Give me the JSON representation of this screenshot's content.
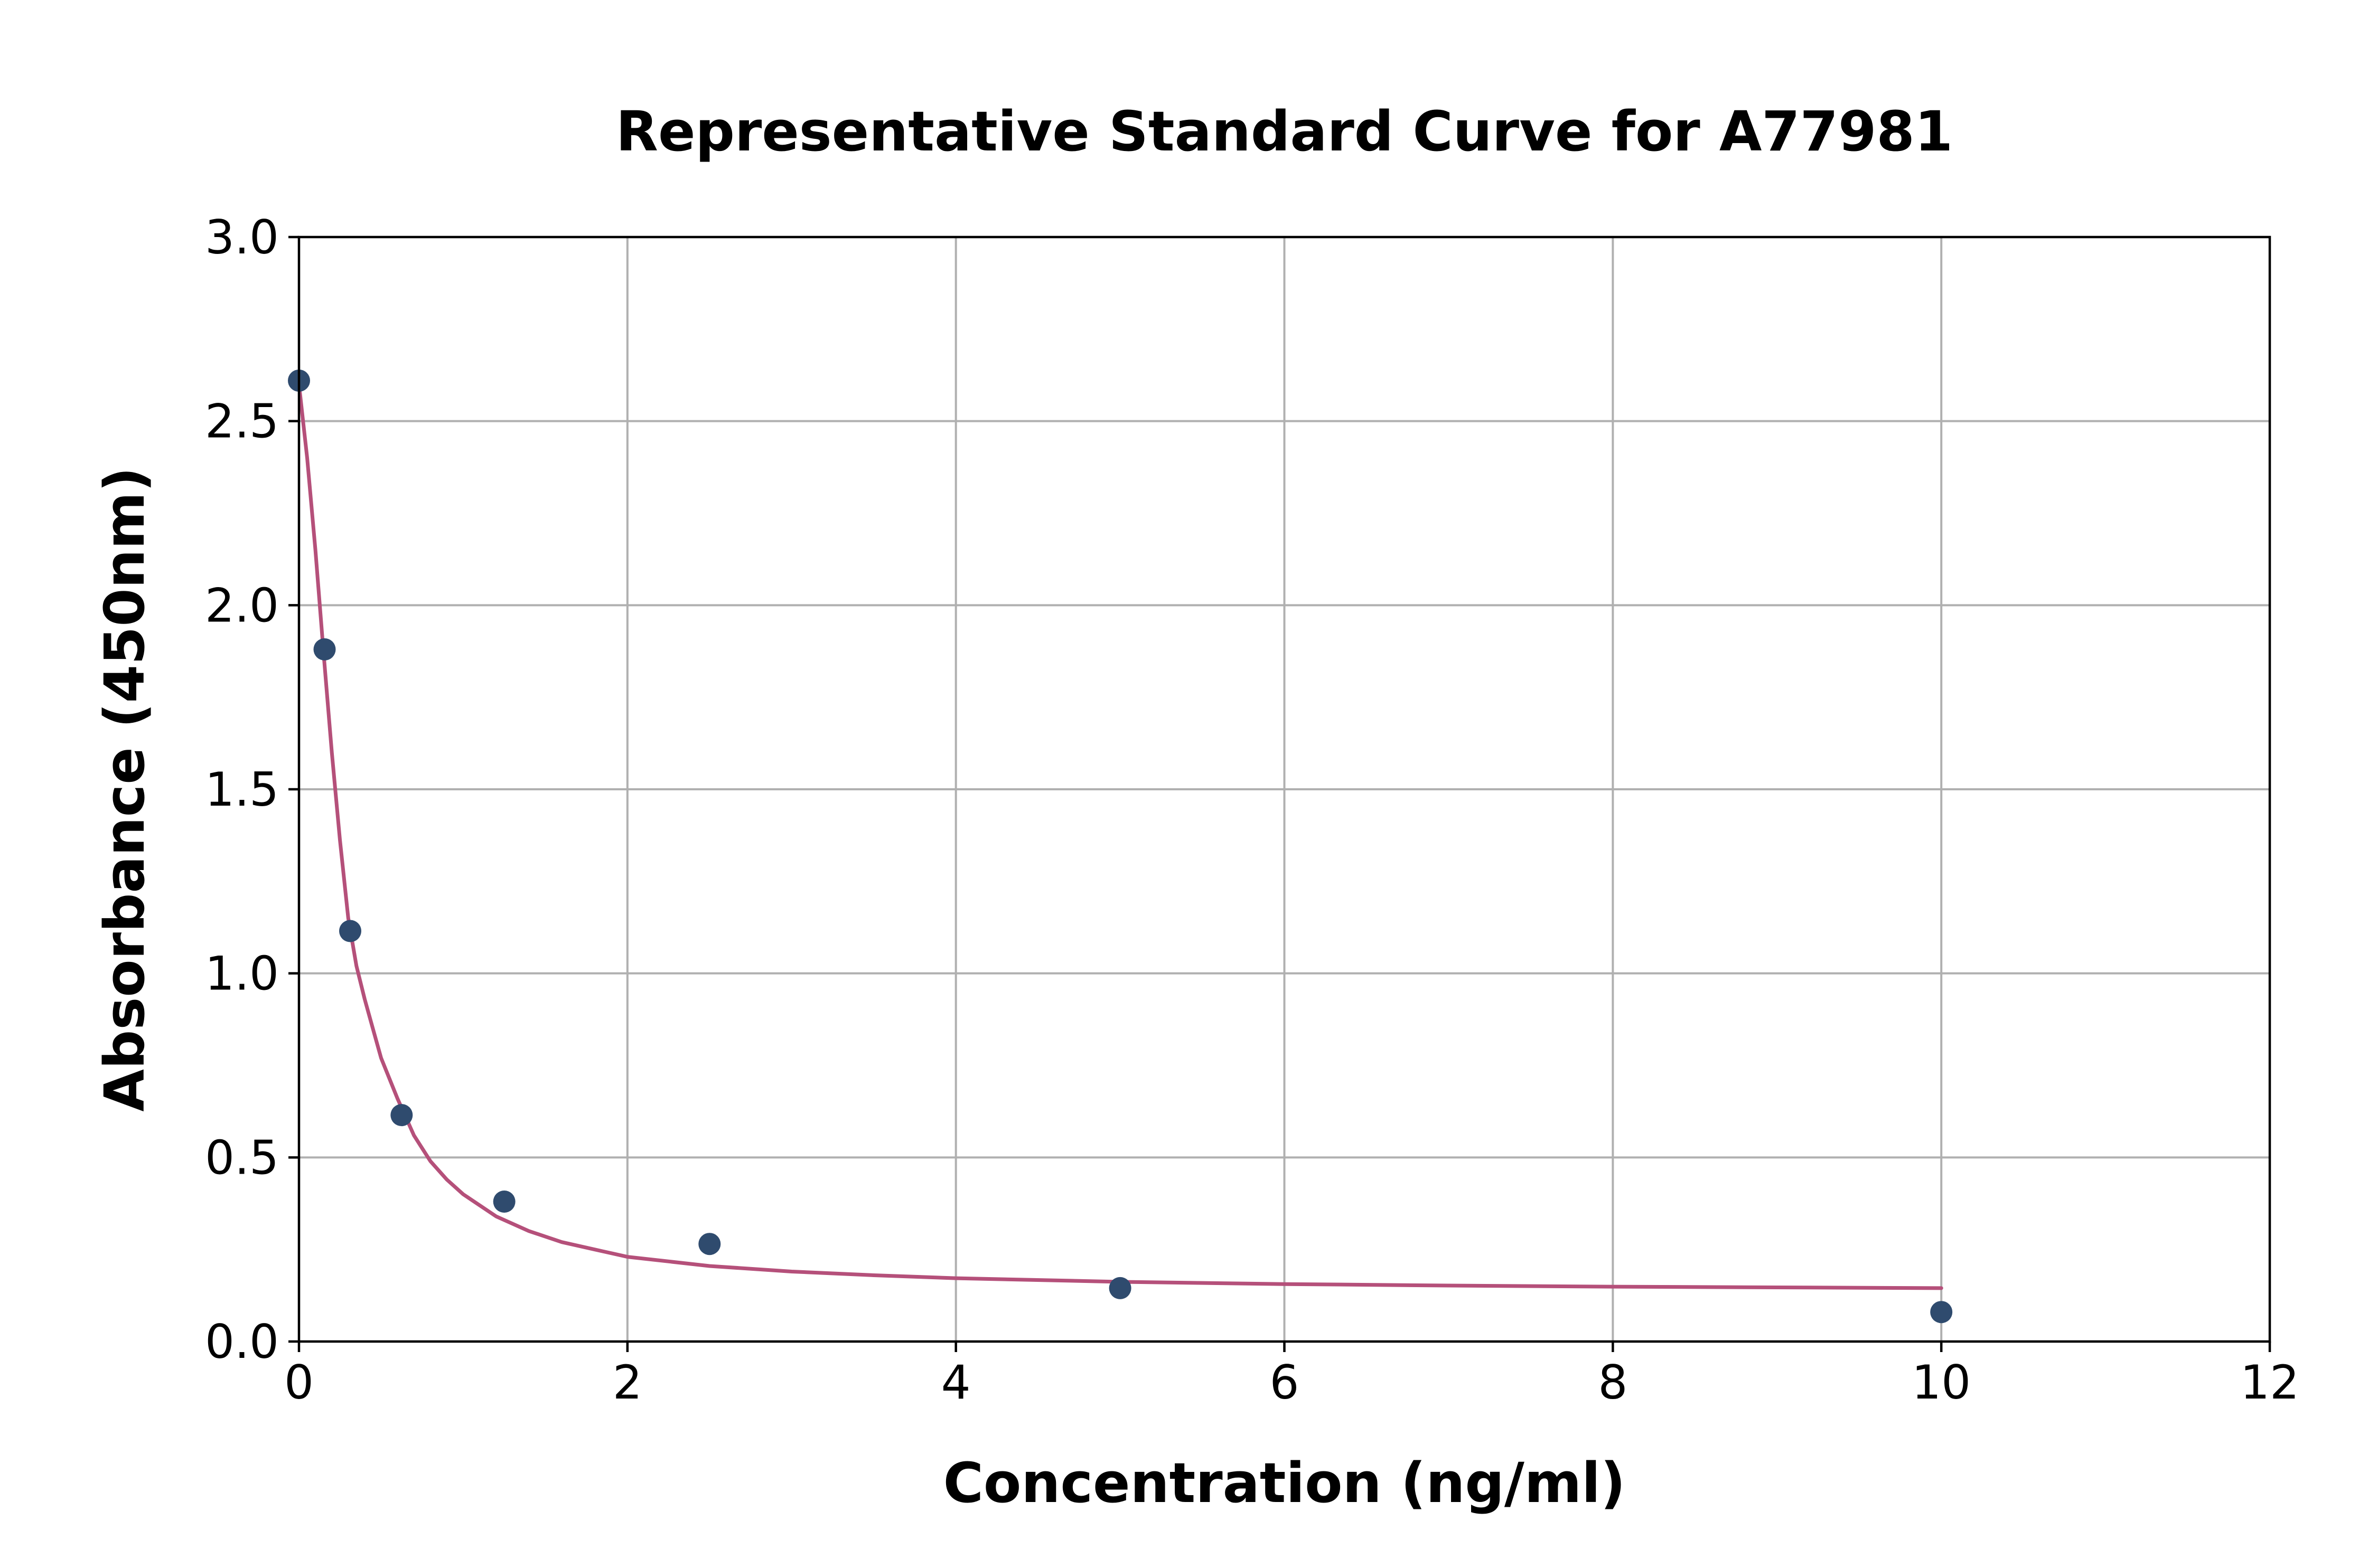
{
  "chart_data": {
    "type": "scatter",
    "title": "Representative Standard Curve for A77981",
    "xlabel": "Concentration (ng/ml)",
    "ylabel": "Absorbance (450nm)",
    "xlim": [
      0,
      12
    ],
    "ylim": [
      0,
      3
    ],
    "xticks": [
      0,
      2,
      4,
      6,
      8,
      10,
      12
    ],
    "yticks": [
      0.0,
      0.5,
      1.0,
      1.5,
      2.0,
      2.5,
      3.0
    ],
    "xtick_labels": [
      "0",
      "2",
      "4",
      "6",
      "8",
      "10",
      "12"
    ],
    "ytick_labels": [
      "0.0",
      "0.5",
      "1.0",
      "1.5",
      "2.0",
      "2.5",
      "3.0"
    ],
    "grid": true,
    "legend": "none",
    "series": [
      {
        "kind": "points",
        "color": "#2f4b6e",
        "x": [
          0,
          0.156,
          0.312,
          0.625,
          1.25,
          2.5,
          5,
          10
        ],
        "y": [
          2.61,
          1.88,
          1.115,
          0.615,
          0.38,
          0.265,
          0.145,
          0.08
        ]
      },
      {
        "kind": "fit-line",
        "color": "#b5507a",
        "x": [
          0,
          0.05,
          0.1,
          0.15,
          0.2,
          0.25,
          0.3,
          0.35,
          0.4,
          0.45,
          0.5,
          0.6,
          0.7,
          0.8,
          0.9,
          1.0,
          1.2,
          1.4,
          1.6,
          1.8,
          2.0,
          2.5,
          3.0,
          3.5,
          4.0,
          5.0,
          6.0,
          7.0,
          8.0,
          9.0,
          10.0
        ],
        "y": [
          2.6,
          2.4,
          2.15,
          1.87,
          1.6,
          1.36,
          1.15,
          1.02,
          0.93,
          0.85,
          0.77,
          0.66,
          0.56,
          0.49,
          0.44,
          0.4,
          0.34,
          0.3,
          0.27,
          0.25,
          0.23,
          0.205,
          0.19,
          0.18,
          0.172,
          0.162,
          0.156,
          0.152,
          0.149,
          0.147,
          0.145
        ]
      }
    ]
  }
}
